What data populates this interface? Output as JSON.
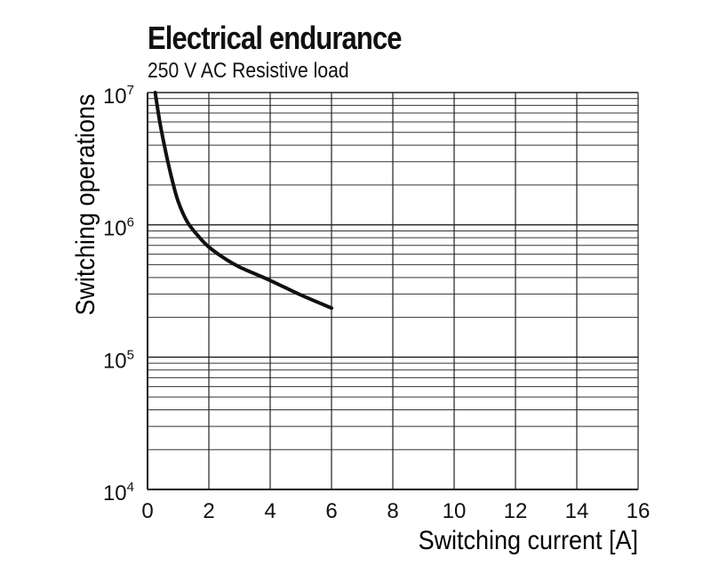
{
  "header": {
    "title": "Electrical endurance",
    "subtitle": "250 V AC Resistive load"
  },
  "chart_data": {
    "type": "line",
    "title": "Electrical endurance",
    "subtitle": "250 V AC Resistive load",
    "xlabel": "Switching current [A]",
    "ylabel": "Switching operations",
    "xlim": [
      0,
      16
    ],
    "ylim": [
      10000,
      10000000
    ],
    "yscale": "log",
    "grid": true,
    "x_ticks": [
      "0",
      "2",
      "4",
      "6",
      "8",
      "10",
      "12",
      "14",
      "16"
    ],
    "y_ticks": [
      {
        "base": "10",
        "exp": "4",
        "value": 10000
      },
      {
        "base": "10",
        "exp": "5",
        "value": 100000
      },
      {
        "base": "10",
        "exp": "6",
        "value": 1000000
      },
      {
        "base": "10",
        "exp": "7",
        "value": 10000000
      }
    ],
    "series": [
      {
        "color": "#111111",
        "points": [
          [
            0.25,
            10000000
          ],
          [
            0.4,
            6000000
          ],
          [
            0.6,
            3500000
          ],
          [
            0.8,
            2200000
          ],
          [
            1.0,
            1500000
          ],
          [
            1.3,
            1050000
          ],
          [
            1.7,
            800000
          ],
          [
            2.0,
            680000
          ],
          [
            2.5,
            560000
          ],
          [
            3.0,
            480000
          ],
          [
            4.0,
            380000
          ],
          [
            5.0,
            295000
          ],
          [
            6.0,
            235000
          ]
        ]
      }
    ]
  }
}
